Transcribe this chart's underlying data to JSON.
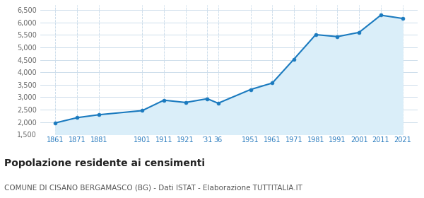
{
  "years": [
    1861,
    1871,
    1881,
    1901,
    1911,
    1921,
    1931,
    1936,
    1951,
    1961,
    1971,
    1981,
    1991,
    2001,
    2011,
    2021
  ],
  "population": [
    1971,
    2181,
    2298,
    2463,
    2882,
    2790,
    2940,
    2760,
    3310,
    3570,
    4530,
    5510,
    5430,
    5600,
    6290,
    6160
  ],
  "line_color": "#1a7abf",
  "fill_color": "#daeef9",
  "marker_color": "#1a7abf",
  "background_color": "#ffffff",
  "grid_color": "#c5d8e8",
  "ylim": [
    1500,
    6700
  ],
  "yticks": [
    1500,
    2000,
    2500,
    3000,
    3500,
    4000,
    4500,
    5000,
    5500,
    6000,
    6500
  ],
  "ytick_labels": [
    "1,500",
    "2,000",
    "2,500",
    "3,000",
    "3,500",
    "4,000",
    "4,500",
    "5,000",
    "5,500",
    "6,000",
    "6,500"
  ],
  "x_positions": [
    1861,
    1871,
    1881,
    1901,
    1911,
    1921,
    1931,
    1936,
    1951,
    1961,
    1971,
    1981,
    1991,
    2001,
    2011,
    2021
  ],
  "x_labels": [
    "1861",
    "1871",
    "1881",
    "1901",
    "1911",
    "1921",
    "’31",
    "36",
    "1951",
    "1961",
    "1971",
    "1981",
    "1991",
    "2001",
    "2011",
    "2021"
  ],
  "xlim": [
    1854,
    2028
  ],
  "title": "Popolazione residente ai censimenti",
  "subtitle": "COMUNE DI CISANO BERGAMASCO (BG) - Dati ISTAT - Elaborazione TUTTITALIA.IT",
  "title_fontsize": 10,
  "subtitle_fontsize": 7.5,
  "tick_color": "#2a7cbf",
  "ytick_color": "#666666"
}
